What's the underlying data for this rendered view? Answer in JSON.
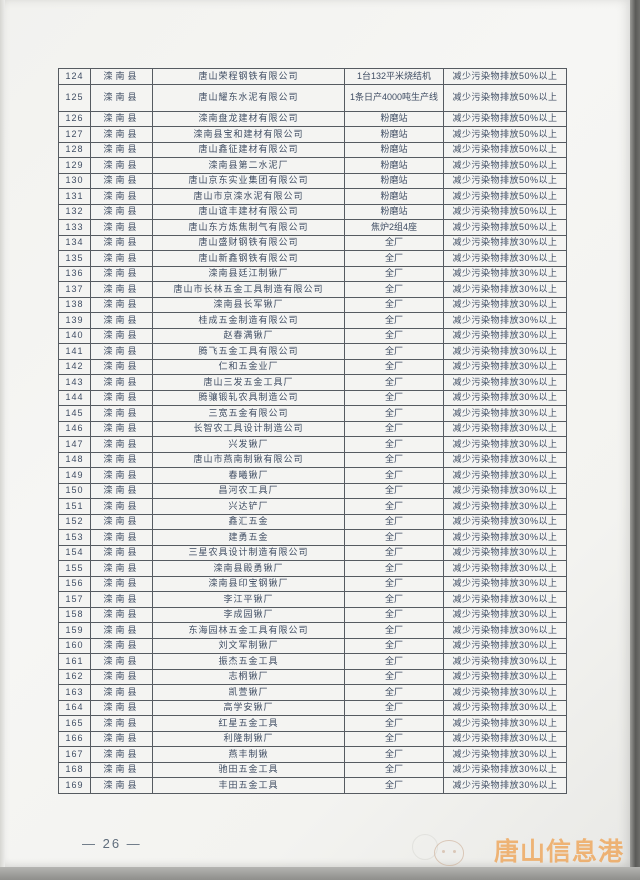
{
  "page": {
    "number_label": "— 26 —"
  },
  "watermark": {
    "title": "唐山信息港",
    "accent_color": "#f0912f"
  },
  "table": {
    "rows": [
      {
        "no": "124",
        "county": "滦南县",
        "company": "唐山荣程钢铁有限公司",
        "facility": "1台132平米烧结机",
        "measure": "减少污染物排放50%以上"
      },
      {
        "no": "125",
        "county": "滦南县",
        "company": "唐山耀东水泥有限公司",
        "facility": "1条日产4000吨生产线",
        "measure": "减少污染物排放50%以上",
        "tall": true
      },
      {
        "no": "126",
        "county": "滦南县",
        "company": "滦南盘龙建材有限公司",
        "facility": "粉磨站",
        "measure": "减少污染物排放50%以上"
      },
      {
        "no": "127",
        "county": "滦南县",
        "company": "滦南县宝和建材有限公司",
        "facility": "粉磨站",
        "measure": "减少污染物排放50%以上"
      },
      {
        "no": "128",
        "county": "滦南县",
        "company": "唐山鑫征建材有限公司",
        "facility": "粉磨站",
        "measure": "减少污染物排放50%以上"
      },
      {
        "no": "129",
        "county": "滦南县",
        "company": "滦南县第二水泥厂",
        "facility": "粉磨站",
        "measure": "减少污染物排放50%以上"
      },
      {
        "no": "130",
        "county": "滦南县",
        "company": "唐山京东实业集团有限公司",
        "facility": "粉磨站",
        "measure": "减少污染物排放50%以上"
      },
      {
        "no": "131",
        "county": "滦南县",
        "company": "唐山市京滦水泥有限公司",
        "facility": "粉磨站",
        "measure": "减少污染物排放50%以上"
      },
      {
        "no": "132",
        "county": "滦南县",
        "company": "唐山谊丰建材有限公司",
        "facility": "粉磨站",
        "measure": "减少污染物排放50%以上"
      },
      {
        "no": "133",
        "county": "滦南县",
        "company": "唐山东方炼焦制气有限公司",
        "facility": "焦炉2组4座",
        "measure": "减少污染物排放50%以上"
      },
      {
        "no": "134",
        "county": "滦南县",
        "company": "唐山盛财钢铁有限公司",
        "facility": "全厂",
        "measure": "减少污染物排放30%以上"
      },
      {
        "no": "135",
        "county": "滦南县",
        "company": "唐山新鑫钢铁有限公司",
        "facility": "全厂",
        "measure": "减少污染物排放30%以上"
      },
      {
        "no": "136",
        "county": "滦南县",
        "company": "滦南县廷江制锹厂",
        "facility": "全厂",
        "measure": "减少污染物排放30%以上"
      },
      {
        "no": "137",
        "county": "滦南县",
        "company": "唐山市长林五金工具制造有限公司",
        "facility": "全厂",
        "measure": "减少污染物排放30%以上"
      },
      {
        "no": "138",
        "county": "滦南县",
        "company": "滦南县长军锹厂",
        "facility": "全厂",
        "measure": "减少污染物排放30%以上"
      },
      {
        "no": "139",
        "county": "滦南县",
        "company": "桂成五金制造有限公司",
        "facility": "全厂",
        "measure": "减少污染物排放30%以上"
      },
      {
        "no": "140",
        "county": "滦南县",
        "company": "赵春满锹厂",
        "facility": "全厂",
        "measure": "减少污染物排放30%以上"
      },
      {
        "no": "141",
        "county": "滦南县",
        "company": "腾飞五金工具有限公司",
        "facility": "全厂",
        "measure": "减少污染物排放30%以上"
      },
      {
        "no": "142",
        "county": "滦南县",
        "company": "仁和五金业厂",
        "facility": "全厂",
        "measure": "减少污染物排放30%以上"
      },
      {
        "no": "143",
        "county": "滦南县",
        "company": "唐山三发五金工具厂",
        "facility": "全厂",
        "measure": "减少污染物排放30%以上"
      },
      {
        "no": "144",
        "county": "滦南县",
        "company": "腾骧锻轧农具制造公司",
        "facility": "全厂",
        "measure": "减少污染物排放30%以上"
      },
      {
        "no": "145",
        "county": "滦南县",
        "company": "三宽五金有限公司",
        "facility": "全厂",
        "measure": "减少污染物排放30%以上"
      },
      {
        "no": "146",
        "county": "滦南县",
        "company": "长智农工具设计制造公司",
        "facility": "全厂",
        "measure": "减少污染物排放30%以上"
      },
      {
        "no": "147",
        "county": "滦南县",
        "company": "兴发锹厂",
        "facility": "全厂",
        "measure": "减少污染物排放30%以上"
      },
      {
        "no": "148",
        "county": "滦南县",
        "company": "唐山市燕南制锹有限公司",
        "facility": "全厂",
        "measure": "减少污染物排放30%以上"
      },
      {
        "no": "149",
        "county": "滦南县",
        "company": "春曦锹厂",
        "facility": "全厂",
        "measure": "减少污染物排放30%以上"
      },
      {
        "no": "150",
        "county": "滦南县",
        "company": "昌河农工具厂",
        "facility": "全厂",
        "measure": "减少污染物排放30%以上"
      },
      {
        "no": "151",
        "county": "滦南县",
        "company": "兴达铲厂",
        "facility": "全厂",
        "measure": "减少污染物排放30%以上"
      },
      {
        "no": "152",
        "county": "滦南县",
        "company": "鑫汇五金",
        "facility": "全厂",
        "measure": "减少污染物排放30%以上"
      },
      {
        "no": "153",
        "county": "滦南县",
        "company": "建勇五金",
        "facility": "全厂",
        "measure": "减少污染物排放30%以上"
      },
      {
        "no": "154",
        "county": "滦南县",
        "company": "三星农具设计制造有限公司",
        "facility": "全厂",
        "measure": "减少污染物排放30%以上"
      },
      {
        "no": "155",
        "county": "滦南县",
        "company": "滦南县殿勇锹厂",
        "facility": "全厂",
        "measure": "减少污染物排放30%以上"
      },
      {
        "no": "156",
        "county": "滦南县",
        "company": "滦南县印宝钢锹厂",
        "facility": "全厂",
        "measure": "减少污染物排放30%以上"
      },
      {
        "no": "157",
        "county": "滦南县",
        "company": "李江平锹厂",
        "facility": "全厂",
        "measure": "减少污染物排放30%以上"
      },
      {
        "no": "158",
        "county": "滦南县",
        "company": "李成园锹厂",
        "facility": "全厂",
        "measure": "减少污染物排放30%以上"
      },
      {
        "no": "159",
        "county": "滦南县",
        "company": "东海园林五金工具有限公司",
        "facility": "全厂",
        "measure": "减少污染物排放30%以上"
      },
      {
        "no": "160",
        "county": "滦南县",
        "company": "刘文军制锹厂",
        "facility": "全厂",
        "measure": "减少污染物排放30%以上"
      },
      {
        "no": "161",
        "county": "滦南县",
        "company": "振杰五金工具",
        "facility": "全厂",
        "measure": "减少污染物排放30%以上"
      },
      {
        "no": "162",
        "county": "滦南县",
        "company": "志桐锹厂",
        "facility": "全厂",
        "measure": "减少污染物排放30%以上"
      },
      {
        "no": "163",
        "county": "滦南县",
        "company": "凯萱锹厂",
        "facility": "全厂",
        "measure": "减少污染物排放30%以上"
      },
      {
        "no": "164",
        "county": "滦南县",
        "company": "高学安锹厂",
        "facility": "全厂",
        "measure": "减少污染物排放30%以上"
      },
      {
        "no": "165",
        "county": "滦南县",
        "company": "红星五金工具",
        "facility": "全厂",
        "measure": "减少污染物排放30%以上"
      },
      {
        "no": "166",
        "county": "滦南县",
        "company": "利隆制锹厂",
        "facility": "全厂",
        "measure": "减少污染物排放30%以上"
      },
      {
        "no": "167",
        "county": "滦南县",
        "company": "燕丰制锹",
        "facility": "全厂",
        "measure": "减少污染物排放30%以上"
      },
      {
        "no": "168",
        "county": "滦南县",
        "company": "驰田五金工具",
        "facility": "全厂",
        "measure": "减少污染物排放30%以上"
      },
      {
        "no": "169",
        "county": "滦南县",
        "company": "丰田五金工具",
        "facility": "全厂",
        "measure": "减少污染物排放30%以上"
      }
    ]
  }
}
